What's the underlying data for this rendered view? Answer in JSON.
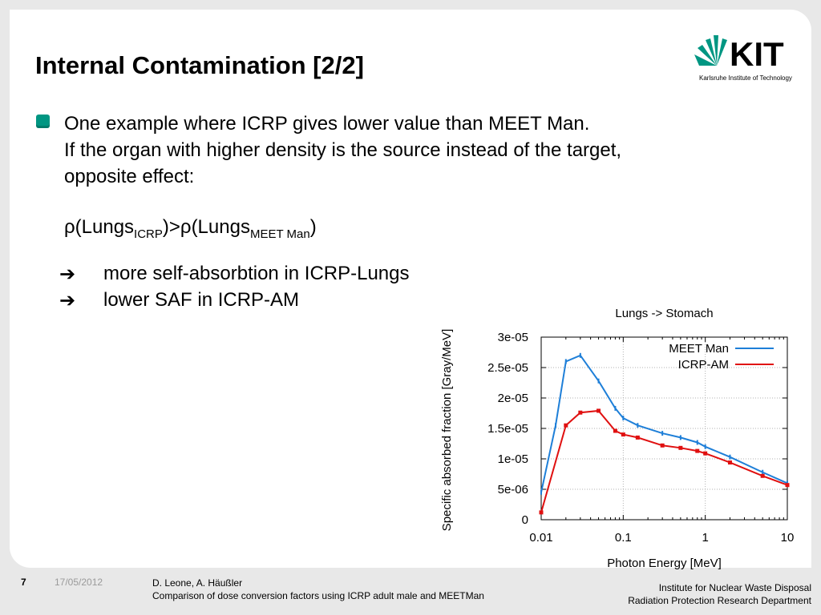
{
  "slide": {
    "title": "Internal Contamination [2/2]",
    "logo": {
      "text": "KIT",
      "subtitle": "Karlsruhe Institute of Technology"
    },
    "bullet_lines": [
      "One example where ICRP gives lower value than MEET Man.",
      "If the organ with higher density is the source instead of the target,",
      "opposite effect:"
    ],
    "rho": {
      "symbol": "ρ",
      "part1": "(Lungs",
      "sub1": "ICRP",
      "part2": ")>",
      "part3": "(Lungs",
      "sub2": "MEET Man",
      "part4": ")"
    },
    "arrow_symbol": "➔",
    "arrows": [
      "more self-absorbtion in ICRP-Lungs",
      "lower SAF in ICRP-AM"
    ]
  },
  "chart_data": {
    "type": "line",
    "title": "Lungs -> Stomach",
    "xlabel": "Photon Energy [MeV]",
    "ylabel": "Specific absorbed fraction [Gray/MeV]",
    "xscale": "log",
    "xlim": [
      0.01,
      10
    ],
    "ylim": [
      0,
      3e-05
    ],
    "xticks": [
      "0.01",
      "0.1",
      "1",
      "10"
    ],
    "yticks": [
      "0",
      "5e-06",
      "1e-05",
      "1.5e-05",
      "2e-05",
      "2.5e-05",
      "3e-05"
    ],
    "grid": true,
    "legend_position": "top-right",
    "series": [
      {
        "name": "MEET Man",
        "color": "#1e7fd8",
        "x": [
          0.01,
          0.015,
          0.02,
          0.03,
          0.05,
          0.08,
          0.1,
          0.15,
          0.3,
          0.5,
          0.8,
          1,
          2,
          5,
          10
        ],
        "y": [
          4.5e-06,
          1.55e-05,
          2.6e-05,
          2.7e-05,
          2.28e-05,
          1.83e-05,
          1.67e-05,
          1.55e-05,
          1.42e-05,
          1.35e-05,
          1.27e-05,
          1.2e-05,
          1.03e-05,
          7.8e-06,
          6e-06
        ]
      },
      {
        "name": "ICRP-AM",
        "color": "#e01010",
        "x": [
          0.01,
          0.02,
          0.03,
          0.05,
          0.08,
          0.1,
          0.15,
          0.3,
          0.5,
          0.8,
          1,
          2,
          5,
          10
        ],
        "y": [
          1.2e-06,
          1.55e-05,
          1.76e-05,
          1.79e-05,
          1.46e-05,
          1.4e-05,
          1.35e-05,
          1.22e-05,
          1.18e-05,
          1.13e-05,
          1.09e-05,
          9.4e-06,
          7.2e-06,
          5.7e-06
        ]
      }
    ]
  },
  "footer": {
    "page": "7",
    "date": "17/05/2012",
    "authors": "D. Leone, A. Häußler",
    "subtitle": "Comparison of dose conversion factors using ICRP adult male and MEETMan",
    "institute_line1": "Institute for Nuclear Waste Disposal",
    "institute_line2": "Radiation Protection Research Department"
  }
}
